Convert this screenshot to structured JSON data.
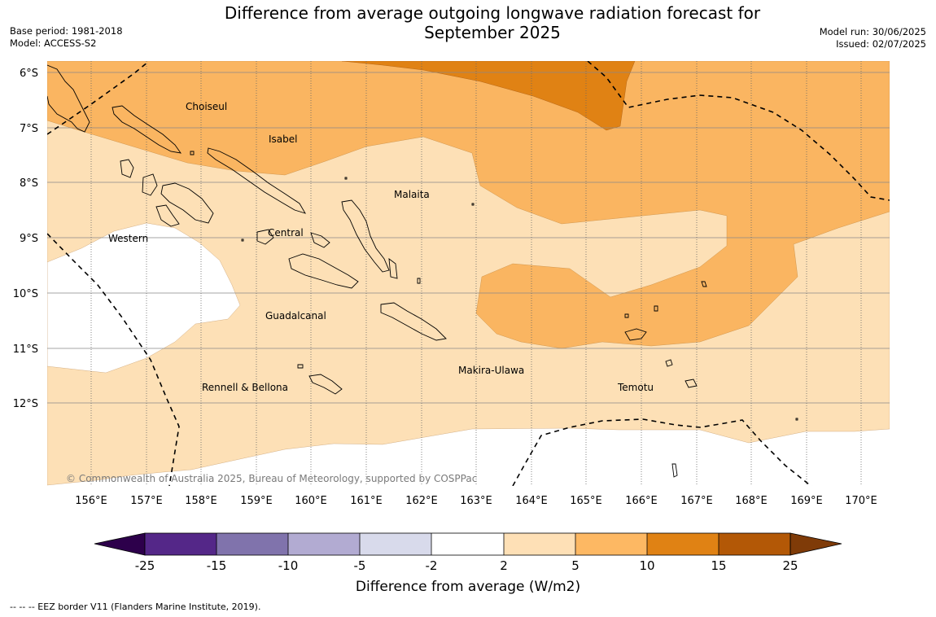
{
  "title": {
    "line1": "Difference from average outgoing longwave radiation forecast for",
    "line2": "September 2025"
  },
  "meta_left": {
    "base_period": "Base period: 1981-2018",
    "model": "Model: ACCESS-S2"
  },
  "meta_right": {
    "model_run": "Model run: 30/06/2025",
    "issued": "Issued: 02/07/2025"
  },
  "map": {
    "lat_labels": [
      "6°S",
      "7°S",
      "8°S",
      "9°S",
      "10°S",
      "11°S",
      "12°S"
    ],
    "lon_labels": [
      "156°E",
      "157°E",
      "158°E",
      "159°E",
      "160°E",
      "161°E",
      "162°E",
      "163°E",
      "164°E",
      "165°E",
      "166°E",
      "167°E",
      "168°E",
      "169°E",
      "170°E"
    ],
    "regions": {
      "choiseul": "Choiseul",
      "isabel": "Isabel",
      "malaita": "Malaita",
      "western": "Western",
      "central": "Central",
      "guadalcanal": "Guadalcanal",
      "makira_ulawa": "Makira-Ulawa",
      "temotu": "Temotu",
      "rennell_bellona": "Rennell & Bellona"
    },
    "copyright": "© Commonwealth of Australia 2025, Bureau of Meteorology, supported by COSPPac",
    "fill_colors": {
      "band_2_5": "#fde0b6",
      "band_5_10": "#fab561",
      "band_10_15": "#e08214",
      "land_outline": "#000000",
      "eez": "#000000"
    }
  },
  "colorbar": {
    "ticks": [
      "-25",
      "-15",
      "-10",
      "-5",
      "-2",
      "2",
      "5",
      "10",
      "15",
      "25"
    ],
    "colors": [
      "#2d004b",
      "#542788",
      "#8073ac",
      "#b2abd2",
      "#d8daeb",
      "#ffffff",
      "#fee0b6",
      "#fdb863",
      "#e08214",
      "#b35806",
      "#7f3b08"
    ],
    "title": "Difference from average (W/m2)"
  },
  "footer": {
    "eez_note": "--  --  -- EEZ border V11 (Flanders Marine Institute, 2019)."
  }
}
